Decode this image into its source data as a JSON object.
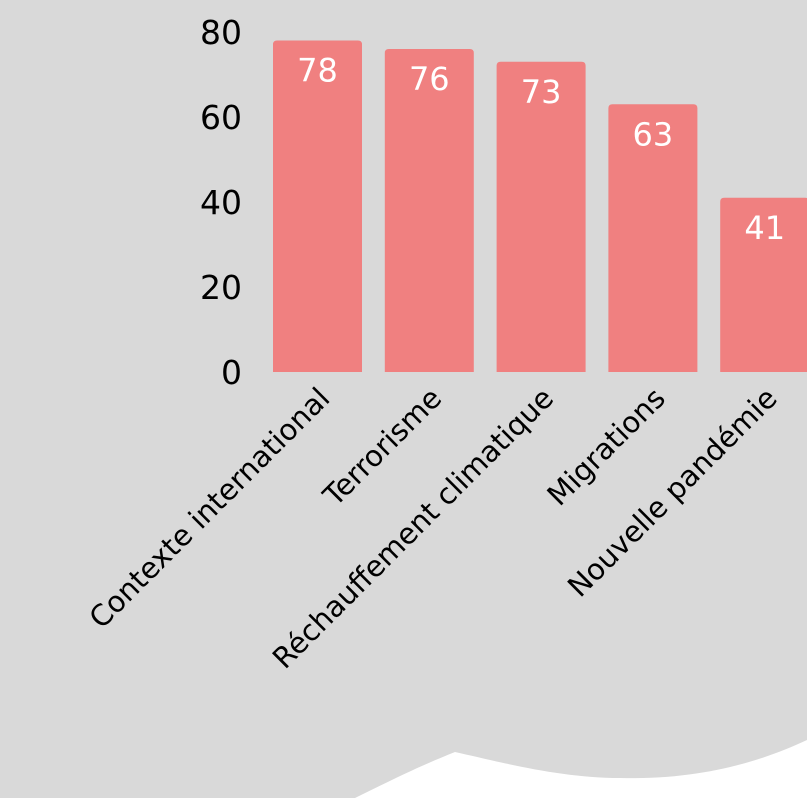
{
  "colors": {
    "background": "#d9d9d9",
    "page": "#ffffff",
    "bar": "#f08080",
    "bar_label": "#ffffff",
    "text": "#000000"
  },
  "chart_data": {
    "type": "bar",
    "categories": [
      "Contexte international",
      "Terrorisme",
      "Réchauffement climatique",
      "Migrations",
      "Nouvelle pandémie"
    ],
    "values": [
      78,
      76,
      73,
      63,
      41
    ],
    "data_labels": [
      "78",
      "76",
      "73",
      "63",
      "41"
    ],
    "yticks": [
      "0",
      "20",
      "40",
      "60",
      "80"
    ],
    "ylim": [
      0,
      80
    ],
    "grid": false,
    "legend": "none",
    "title": "",
    "xlabel": "",
    "ylabel": ""
  }
}
